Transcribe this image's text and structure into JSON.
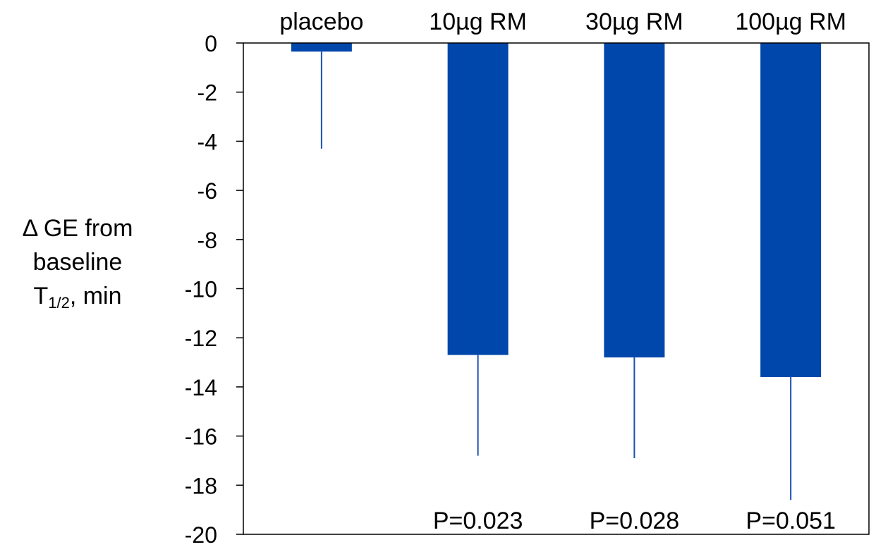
{
  "chart_data": {
    "type": "bar",
    "categories": [
      "placebo",
      "10µg RM",
      "30µg RM",
      "100µg RM"
    ],
    "values": [
      -0.35,
      -12.7,
      -12.8,
      -13.6
    ],
    "error_lower": [
      -4.3,
      -16.8,
      -16.9,
      -18.6
    ],
    "p_values": [
      "",
      "P=0.023",
      "P=0.028",
      "P=0.051"
    ],
    "ylabel": {
      "line1": "Δ GE from",
      "line2": "baseline",
      "line3_main": "T",
      "line3_sub": "1/2",
      "line3_rest": ", min"
    },
    "ylim": [
      -20,
      0
    ],
    "yticks": [
      0,
      -2,
      -4,
      -6,
      -8,
      -10,
      -12,
      -14,
      -16,
      -18,
      -20
    ],
    "bar_color": "#0047AB",
    "error_color": "#1a52b0",
    "grid": false,
    "legend": "none"
  }
}
